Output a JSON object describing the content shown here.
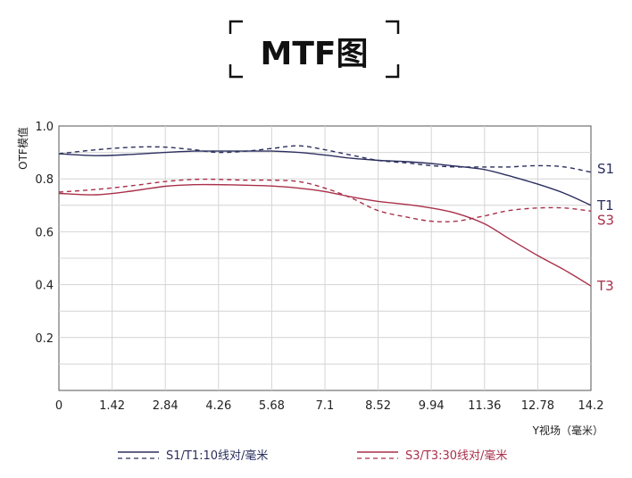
{
  "chart_data": {
    "type": "line",
    "title": "MTF图",
    "xlabel": "Y视场（毫米）",
    "ylabel": "OTF模值",
    "xlim": [
      0,
      14.2
    ],
    "ylim": [
      0,
      1.0
    ],
    "x_ticks": [
      "0",
      "1.42",
      "2.84",
      "4.26",
      "5.68",
      "7.1",
      "8.52",
      "9.94",
      "11.36",
      "12.78",
      "14.2"
    ],
    "y_ticks": [
      "0.2",
      "0.4",
      "0.6",
      "0.8",
      "1.0"
    ],
    "grid": true,
    "colors": {
      "T1_S1": "#2b2f5e",
      "T3_S3": "#a8304a"
    },
    "series": [
      {
        "name": "S1",
        "style": "dashed",
        "color": "#2b2f5e",
        "x": [
          0,
          1.0,
          2.0,
          2.84,
          3.6,
          4.26,
          5.0,
          5.68,
          6.4,
          7.1,
          7.8,
          8.52,
          9.3,
          9.94,
          10.6,
          11.36,
          12.0,
          12.78,
          13.5,
          14.2
        ],
        "y": [
          0.895,
          0.91,
          0.92,
          0.92,
          0.91,
          0.9,
          0.905,
          0.915,
          0.925,
          0.91,
          0.89,
          0.87,
          0.86,
          0.85,
          0.845,
          0.845,
          0.845,
          0.85,
          0.845,
          0.825
        ]
      },
      {
        "name": "T1",
        "style": "solid",
        "color": "#2b2f5e",
        "x": [
          0,
          1.0,
          2.0,
          2.84,
          3.6,
          4.26,
          5.0,
          5.68,
          6.4,
          7.1,
          7.8,
          8.52,
          9.3,
          9.94,
          10.6,
          11.36,
          12.0,
          12.78,
          13.5,
          14.2
        ],
        "y": [
          0.895,
          0.888,
          0.893,
          0.9,
          0.905,
          0.905,
          0.905,
          0.905,
          0.9,
          0.89,
          0.878,
          0.87,
          0.865,
          0.858,
          0.848,
          0.835,
          0.812,
          0.78,
          0.745,
          0.7
        ]
      },
      {
        "name": "S3",
        "style": "dashed",
        "color": "#a8304a",
        "x": [
          0,
          1.0,
          2.0,
          2.84,
          3.6,
          4.26,
          5.0,
          5.68,
          6.4,
          7.1,
          7.8,
          8.52,
          9.3,
          9.94,
          10.6,
          11.36,
          12.0,
          12.78,
          13.5,
          14.2
        ],
        "y": [
          0.75,
          0.76,
          0.775,
          0.79,
          0.798,
          0.798,
          0.795,
          0.795,
          0.79,
          0.765,
          0.728,
          0.68,
          0.655,
          0.64,
          0.64,
          0.66,
          0.68,
          0.69,
          0.69,
          0.678
        ]
      },
      {
        "name": "T3",
        "style": "solid",
        "color": "#a8304a",
        "x": [
          0,
          1.0,
          2.0,
          2.84,
          3.6,
          4.26,
          5.0,
          5.68,
          6.4,
          7.1,
          7.8,
          8.52,
          9.3,
          9.94,
          10.6,
          11.36,
          12.0,
          12.78,
          13.5,
          14.2
        ],
        "y": [
          0.745,
          0.74,
          0.755,
          0.772,
          0.778,
          0.778,
          0.776,
          0.773,
          0.765,
          0.752,
          0.732,
          0.715,
          0.703,
          0.69,
          0.67,
          0.63,
          0.575,
          0.51,
          0.455,
          0.395
        ]
      }
    ],
    "series_labels": [
      "S1",
      "T1",
      "S3",
      "T3"
    ],
    "legend": {
      "placement": "bottom",
      "entries": [
        {
          "text": "S1/T1:10线对/毫米",
          "color": "#2b2f5e"
        },
        {
          "text": "S3/T3:30线对/毫米",
          "color": "#a8304a"
        }
      ]
    }
  }
}
